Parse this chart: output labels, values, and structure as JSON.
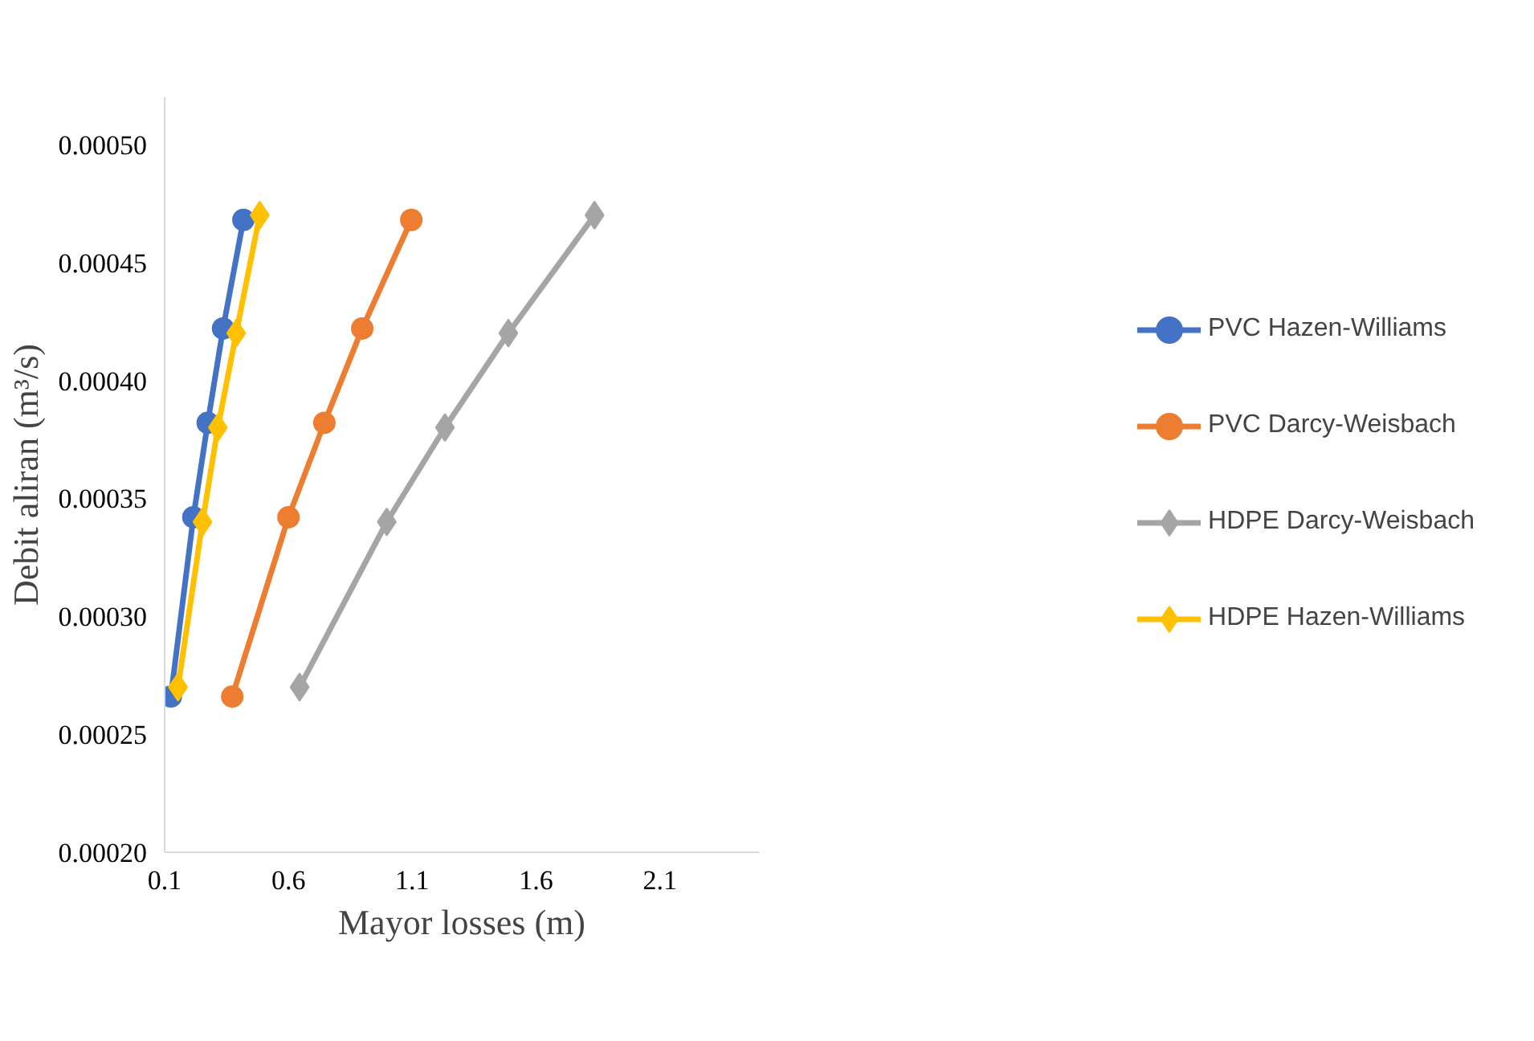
{
  "chart_data": {
    "type": "line",
    "xlabel": "Mayor losses (m)",
    "ylabel": "Debit aliran (m³/s)",
    "xlim": [
      0.1,
      2.5
    ],
    "xticks": [
      0.1,
      0.6,
      1.1,
      1.6,
      2.1
    ],
    "ylim": [
      0.0002,
      0.00052
    ],
    "yticks": [
      {
        "value": 0.0002,
        "label": "0.00020"
      },
      {
        "value": 0.00025,
        "label": "0.00025"
      },
      {
        "value": 0.0003,
        "label": "0.00030"
      },
      {
        "value": 0.00035,
        "label": "0.00035"
      },
      {
        "value": 0.0004,
        "label": "0.00040"
      },
      {
        "value": 0.00045,
        "label": "0.00045"
      },
      {
        "value": 0.0005,
        "label": "0.00050"
      }
    ],
    "grid": false,
    "legend": "right",
    "line_style": "solid",
    "series": [
      {
        "name": "PVC Hazen-Williams",
        "color": "#4472c4",
        "marker": "circle",
        "x": [
          0.125,
          0.216,
          0.274,
          0.336,
          0.418
        ],
        "values": [
          0.000266,
          0.000342,
          0.000382,
          0.000422,
          0.000468
        ]
      },
      {
        "name": "PVC Darcy-Weisbach",
        "color": "#ed7d31",
        "marker": "circle",
        "x": [
          0.373,
          0.6,
          0.745,
          0.898,
          1.096
        ],
        "values": [
          0.000266,
          0.000342,
          0.000382,
          0.000422,
          0.000468
        ]
      },
      {
        "name": "HDPE Darcy-Weisbach",
        "color": "#a5a5a5",
        "marker": "diamond",
        "x": [
          0.645,
          0.997,
          1.232,
          1.488,
          1.836
        ],
        "values": [
          0.00027,
          0.00034,
          0.00038,
          0.00042,
          0.00047
        ]
      },
      {
        "name": "HDPE Hazen-Williams",
        "color": "#ffc000",
        "marker": "diamond",
        "x": [
          0.154,
          0.253,
          0.315,
          0.389,
          0.484
        ],
        "values": [
          0.00027,
          0.00034,
          0.00038,
          0.00042,
          0.00047
        ]
      }
    ]
  }
}
